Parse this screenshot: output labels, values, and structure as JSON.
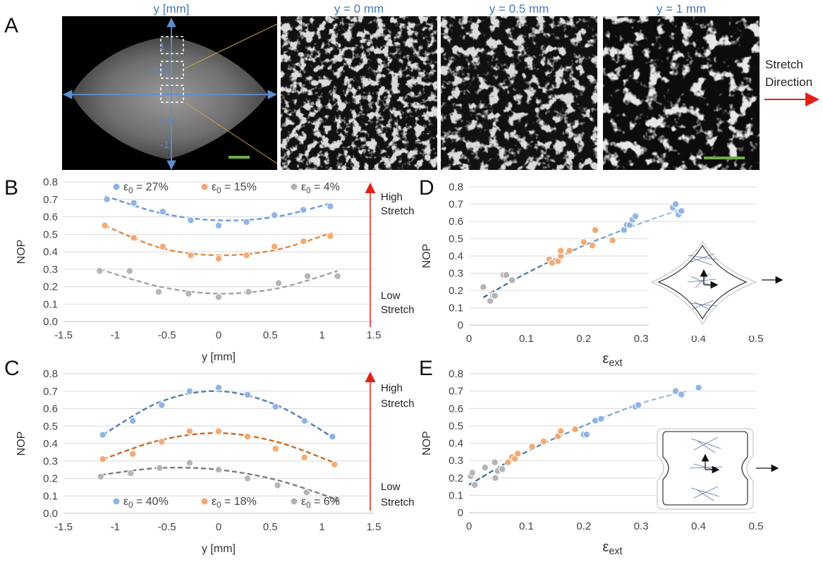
{
  "panel_labels": {
    "A": "A",
    "B": "B",
    "C": "C",
    "D": "D",
    "E": "E"
  },
  "panel_A": {
    "overview_axis_title": "y [mm]",
    "overview_ticks": [
      "1",
      "0.5",
      "0",
      "-0.5",
      "-1"
    ],
    "zoom_titles": [
      "y = 0 mm",
      "y = 0.5 mm",
      "y = 1 mm"
    ],
    "stretch_line1": "Stretch",
    "stretch_line2": "Direction",
    "colors": {
      "axis_blue": "#5b8fd0",
      "scale_bar": "#70ad47",
      "stretch_arrow": "#e32018",
      "zoom_line": "#c9a23a"
    }
  },
  "stretch_annotations": {
    "high_1": "High",
    "high_2": "Stretch",
    "low_1": "Low",
    "low_2": "Stretch"
  },
  "chart_data": [
    {
      "panel": "B",
      "type": "scatter",
      "xlabel": "y [mm]",
      "ylabel": "NOP",
      "xlim": [
        -1.5,
        1.5
      ],
      "ylim": [
        0,
        0.8
      ],
      "xticks": [
        "-1.5",
        "-1",
        "-0.5",
        "0",
        "0.5",
        "1",
        "1.5"
      ],
      "yticks": [
        "0.0",
        "0.1",
        "0.2",
        "0.3",
        "0.4",
        "0.5",
        "0.6",
        "0.7",
        "0.8"
      ],
      "legend_position": "top",
      "series": [
        {
          "name": "ε0 = 27%",
          "color": "#8db3e2",
          "fit_color": "#5b8fd0",
          "x": [
            -1.08,
            -0.82,
            -0.54,
            -0.27,
            0.0,
            0.27,
            0.54,
            0.82,
            1.08
          ],
          "y": [
            0.7,
            0.68,
            0.63,
            0.58,
            0.55,
            0.57,
            0.61,
            0.64,
            0.66
          ],
          "fit_x": [
            -1.1,
            -0.55,
            0.0,
            0.55,
            1.1
          ],
          "fit_y": [
            0.72,
            0.62,
            0.58,
            0.6,
            0.68
          ]
        },
        {
          "name": "ε0 = 15%",
          "color": "#f4a771",
          "fit_color": "#dd7c34",
          "x": [
            -1.1,
            -0.82,
            -0.54,
            -0.27,
            0.0,
            0.27,
            0.54,
            0.82,
            1.08
          ],
          "y": [
            0.55,
            0.48,
            0.43,
            0.38,
            0.36,
            0.38,
            0.43,
            0.46,
            0.49
          ],
          "fit_x": [
            -1.1,
            -0.55,
            0.0,
            0.55,
            1.1
          ],
          "fit_y": [
            0.55,
            0.42,
            0.38,
            0.41,
            0.51
          ]
        },
        {
          "name": "ε0 = 4%",
          "color": "#b3b3b3",
          "fit_color": "#9a9a9a",
          "x": [
            -1.15,
            -0.86,
            -0.58,
            -0.29,
            0.0,
            0.29,
            0.58,
            0.86,
            1.15
          ],
          "y": [
            0.29,
            0.29,
            0.17,
            0.16,
            0.14,
            0.17,
            0.22,
            0.26,
            0.26
          ],
          "fit_x": [
            -1.15,
            -0.57,
            0.0,
            0.57,
            1.15
          ],
          "fit_y": [
            0.3,
            0.2,
            0.16,
            0.19,
            0.29
          ]
        }
      ]
    },
    {
      "panel": "C",
      "type": "scatter",
      "xlabel": "y [mm]",
      "ylabel": "NOP",
      "xlim": [
        -1.5,
        1.5
      ],
      "ylim": [
        0,
        0.8
      ],
      "xticks": [
        "-1.5",
        "-1",
        "-0.5",
        "0",
        "0.5",
        "1",
        "1.5"
      ],
      "yticks": [
        "0.0",
        "0.1",
        "0.2",
        "0.3",
        "0.4",
        "0.5",
        "0.6",
        "0.7",
        "0.8"
      ],
      "legend_position": "bottom",
      "series": [
        {
          "name": "ε0 = 40%",
          "color": "#8db3e2",
          "fit_color": "#3e6fad",
          "x": [
            -1.12,
            -0.83,
            -0.55,
            -0.28,
            0.0,
            0.28,
            0.55,
            0.83,
            1.1
          ],
          "y": [
            0.45,
            0.53,
            0.62,
            0.7,
            0.72,
            0.68,
            0.61,
            0.53,
            0.44
          ],
          "fit_x": [
            -1.12,
            -0.56,
            0.0,
            0.56,
            1.12
          ],
          "fit_y": [
            0.45,
            0.64,
            0.7,
            0.62,
            0.43
          ]
        },
        {
          "name": "ε0 = 18%",
          "color": "#f4a771",
          "fit_color": "#c55a11",
          "x": [
            -1.12,
            -0.83,
            -0.55,
            -0.28,
            0.0,
            0.28,
            0.55,
            0.83,
            1.12
          ],
          "y": [
            0.31,
            0.34,
            0.41,
            0.47,
            0.47,
            0.44,
            0.37,
            0.32,
            0.28
          ],
          "fit_x": [
            -1.12,
            -0.56,
            0.0,
            0.56,
            1.12
          ],
          "fit_y": [
            0.31,
            0.42,
            0.46,
            0.41,
            0.29
          ]
        },
        {
          "name": "ε0 = 6%",
          "color": "#b3b3b3",
          "fit_color": "#6e6e6e",
          "x": [
            -1.14,
            -0.85,
            -0.57,
            -0.28,
            0.0,
            0.28,
            0.57,
            0.85,
            1.14
          ],
          "y": [
            0.21,
            0.23,
            0.26,
            0.29,
            0.25,
            0.2,
            0.16,
            0.12,
            0.08
          ],
          "fit_x": [
            -1.14,
            -0.57,
            0.0,
            0.57,
            1.14
          ],
          "fit_y": [
            0.22,
            0.26,
            0.25,
            0.19,
            0.08
          ]
        }
      ]
    },
    {
      "panel": "D",
      "type": "scatter",
      "xlabel": "εext",
      "ylabel": "NOP",
      "xlim": [
        0,
        0.5
      ],
      "ylim": [
        0,
        0.8
      ],
      "xticks": [
        "0",
        "0.1",
        "0.2",
        "0.3",
        "0.4",
        "0.5"
      ],
      "yticks": [
        "0",
        "0.1",
        "0.2",
        "0.3",
        "0.4",
        "0.5",
        "0.6",
        "0.7",
        "0.8"
      ],
      "series": [
        {
          "name": "",
          "color": "#b3b3b3",
          "x": [
            0.025,
            0.037,
            0.042,
            0.045,
            0.06,
            0.065,
            0.075
          ],
          "y": [
            0.22,
            0.14,
            0.17,
            0.17,
            0.29,
            0.29,
            0.26
          ]
        },
        {
          "name": "",
          "color": "#f4a771",
          "x": [
            0.14,
            0.145,
            0.155,
            0.16,
            0.16,
            0.175,
            0.2,
            0.215,
            0.22,
            0.25
          ],
          "y": [
            0.38,
            0.36,
            0.37,
            0.4,
            0.43,
            0.43,
            0.48,
            0.46,
            0.55,
            0.49
          ]
        },
        {
          "name": "",
          "color": "#8db3e2",
          "x": [
            0.27,
            0.275,
            0.28,
            0.285,
            0.29,
            0.355,
            0.36,
            0.365,
            0.37
          ],
          "y": [
            0.55,
            0.58,
            0.58,
            0.61,
            0.63,
            0.68,
            0.7,
            0.64,
            0.66
          ]
        }
      ],
      "fit": {
        "x": [
          0.025,
          0.1,
          0.2,
          0.3,
          0.37
        ],
        "y": [
          0.16,
          0.3,
          0.46,
          0.59,
          0.67
        ],
        "color_start": "#2e5f9e",
        "color_end": "#a9c6e8"
      }
    },
    {
      "panel": "E",
      "type": "scatter",
      "xlabel": "εext",
      "ylabel": "NOP",
      "xlim": [
        0,
        0.5
      ],
      "ylim": [
        0,
        0.8
      ],
      "xticks": [
        "0",
        "0.1",
        "0.2",
        "0.3",
        "0.4",
        "0.5"
      ],
      "yticks": [
        "0",
        "0.1",
        "0.2",
        "0.3",
        "0.4",
        "0.5",
        "0.6",
        "0.7",
        "0.8"
      ],
      "series": [
        {
          "name": "",
          "color": "#b3b3b3",
          "x": [
            0.003,
            0.006,
            0.01,
            0.028,
            0.045,
            0.046,
            0.05,
            0.058
          ],
          "y": [
            0.21,
            0.23,
            0.16,
            0.26,
            0.29,
            0.2,
            0.24,
            0.25
          ]
        },
        {
          "name": "",
          "color": "#f4a771",
          "x": [
            0.068,
            0.075,
            0.08,
            0.085,
            0.11,
            0.13,
            0.155,
            0.16,
            0.185
          ],
          "y": [
            0.29,
            0.32,
            0.31,
            0.34,
            0.38,
            0.41,
            0.44,
            0.47,
            0.48
          ]
        },
        {
          "name": "",
          "color": "#8db3e2",
          "x": [
            0.2,
            0.205,
            0.22,
            0.23,
            0.29,
            0.295,
            0.36,
            0.37,
            0.4
          ],
          "y": [
            0.45,
            0.45,
            0.53,
            0.54,
            0.61,
            0.62,
            0.7,
            0.68,
            0.72
          ]
        }
      ],
      "fit": {
        "x": [
          0.0,
          0.1,
          0.2,
          0.3,
          0.38
        ],
        "y": [
          0.16,
          0.35,
          0.5,
          0.63,
          0.7
        ],
        "color_start": "#2e5f9e",
        "color_end": "#a9c6e8"
      }
    }
  ]
}
